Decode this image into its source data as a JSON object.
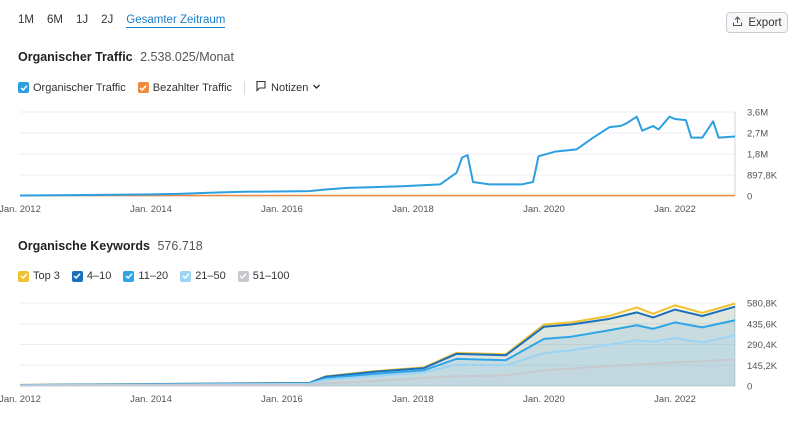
{
  "range": {
    "items": [
      "1M",
      "6M",
      "1J",
      "2J",
      "Gesamter Zeitraum"
    ],
    "active_index": 4
  },
  "export": {
    "label": "Export"
  },
  "traffic": {
    "title": "Organischer Traffic",
    "value": "2.538.025/Monat",
    "legend": [
      {
        "label": "Organischer Traffic",
        "color": "#2d9fe0",
        "checked": true
      },
      {
        "label": "Bezahlter Traffic",
        "color": "#ef8a3f",
        "checked": true
      }
    ],
    "notes_label": "Notizen"
  },
  "keywords": {
    "title": "Organische Keywords",
    "value": "576.718",
    "legend": [
      {
        "label": "Top 3",
        "color": "#f0c133"
      },
      {
        "label": "4–10",
        "color": "#1a70bb"
      },
      {
        "label": "11–20",
        "color": "#2ea6e6"
      },
      {
        "label": "21–50",
        "color": "#9dd3f3"
      },
      {
        "label": "51–100",
        "color": "#c7c9cf"
      }
    ]
  },
  "chart_data": [
    {
      "type": "line",
      "name": "organic-traffic",
      "ylim": [
        0,
        3600000
      ],
      "y_ticks": [
        "3,6M",
        "2,7M",
        "1,8M",
        "897,8K",
        "0"
      ],
      "x_ticks": [
        "Jan. 2012",
        "Jan. 2014",
        "Jan. 2016",
        "Jan. 2018",
        "Jan. 2020",
        "Jan. 2022"
      ],
      "series": [
        {
          "name": "Organischer Traffic",
          "color": "#2d9fe0",
          "points": [
            [
              "2012-01",
              20000
            ],
            [
              "2013-01",
              45000
            ],
            [
              "2014-01",
              70000
            ],
            [
              "2014-06",
              90000
            ],
            [
              "2015-01",
              150000
            ],
            [
              "2015-06",
              180000
            ],
            [
              "2016-06",
              210000
            ],
            [
              "2016-09",
              280000
            ],
            [
              "2017-01",
              350000
            ],
            [
              "2017-06",
              380000
            ],
            [
              "2017-11",
              420000
            ],
            [
              "2018-06",
              500000
            ],
            [
              "2018-09",
              1000000
            ],
            [
              "2018-10",
              1650000
            ],
            [
              "2018-11",
              1750000
            ],
            [
              "2018-12",
              600000
            ],
            [
              "2019-03",
              500000
            ],
            [
              "2019-09",
              500000
            ],
            [
              "2019-11",
              600000
            ],
            [
              "2019-12",
              1700000
            ],
            [
              "2020-03",
              1900000
            ],
            [
              "2020-07",
              2000000
            ],
            [
              "2020-10",
              2500000
            ],
            [
              "2021-01",
              2950000
            ],
            [
              "2021-03",
              3000000
            ],
            [
              "2021-04",
              3100000
            ],
            [
              "2021-06",
              3400000
            ],
            [
              "2021-07",
              2800000
            ],
            [
              "2021-09",
              3000000
            ],
            [
              "2021-10",
              2850000
            ],
            [
              "2021-12",
              3400000
            ],
            [
              "2022-01",
              3300000
            ],
            [
              "2022-03",
              3250000
            ],
            [
              "2022-04",
              2500000
            ],
            [
              "2022-06",
              2500000
            ],
            [
              "2022-08",
              3200000
            ],
            [
              "2022-09",
              2500000
            ],
            [
              "2022-12",
              2550000
            ]
          ]
        },
        {
          "name": "Bezahlter Traffic",
          "color": "#ef8a3f",
          "points": [
            [
              "2012-01",
              0
            ],
            [
              "2022-12",
              0
            ]
          ]
        }
      ]
    },
    {
      "type": "area",
      "name": "organic-keywords",
      "ylim": [
        0,
        580800
      ],
      "y_ticks": [
        "580,8K",
        "435,6K",
        "290,4K",
        "145,2K",
        "0"
      ],
      "x_ticks": [
        "Jan. 2012",
        "Jan. 2014",
        "Jan. 2016",
        "Jan. 2018",
        "Jan. 2020",
        "Jan. 2022"
      ],
      "series": [
        {
          "name": "51–100",
          "color": "#c7c9cf",
          "points": [
            [
              "2012-01",
              3000
            ],
            [
              "2016-06",
              9000
            ],
            [
              "2016-09",
              18000
            ],
            [
              "2017-06",
              35000
            ],
            [
              "2018-06",
              65000
            ],
            [
              "2019-06",
              75000
            ],
            [
              "2020-01",
              110000
            ],
            [
              "2021-01",
              140000
            ],
            [
              "2022-01",
              165000
            ],
            [
              "2022-12",
              185000
            ]
          ]
        },
        {
          "name": "21–50",
          "color": "#9dd3f3",
          "points": [
            [
              "2012-01",
              5000
            ],
            [
              "2016-06",
              15000
            ],
            [
              "2016-09",
              45000
            ],
            [
              "2017-06",
              70000
            ],
            [
              "2018-03",
              95000
            ],
            [
              "2018-09",
              150000
            ],
            [
              "2019-06",
              145000
            ],
            [
              "2020-01",
              230000
            ],
            [
              "2020-06",
              250000
            ],
            [
              "2021-01",
              290000
            ],
            [
              "2021-06",
              320000
            ],
            [
              "2021-09",
              310000
            ],
            [
              "2022-01",
              335000
            ],
            [
              "2022-06",
              305000
            ],
            [
              "2022-12",
              355000
            ]
          ]
        },
        {
          "name": "11–20",
          "color": "#2ea6e6",
          "points": [
            [
              "2012-01",
              6000
            ],
            [
              "2016-06",
              18000
            ],
            [
              "2016-09",
              55000
            ],
            [
              "2017-06",
              85000
            ],
            [
              "2018-03",
              110000
            ],
            [
              "2018-09",
              190000
            ],
            [
              "2019-06",
              180000
            ],
            [
              "2020-01",
              330000
            ],
            [
              "2020-06",
              345000
            ],
            [
              "2021-01",
              390000
            ],
            [
              "2021-06",
              425000
            ],
            [
              "2021-09",
              400000
            ],
            [
              "2022-01",
              445000
            ],
            [
              "2022-06",
              410000
            ],
            [
              "2022-12",
              460000
            ]
          ]
        },
        {
          "name": "4–10",
          "color": "#1a70bb",
          "points": [
            [
              "2012-01",
              7000
            ],
            [
              "2016-06",
              21000
            ],
            [
              "2016-09",
              65000
            ],
            [
              "2017-06",
              100000
            ],
            [
              "2018-03",
              125000
            ],
            [
              "2018-09",
              225000
            ],
            [
              "2019-06",
              215000
            ],
            [
              "2020-01",
              415000
            ],
            [
              "2020-06",
              430000
            ],
            [
              "2021-01",
              470000
            ],
            [
              "2021-06",
              515000
            ],
            [
              "2021-09",
              480000
            ],
            [
              "2022-01",
              535000
            ],
            [
              "2022-06",
              490000
            ],
            [
              "2022-12",
              555000
            ]
          ]
        },
        {
          "name": "Top 3",
          "color": "#f0c133",
          "points": [
            [
              "2012-01",
              8000
            ],
            [
              "2016-06",
              22000
            ],
            [
              "2016-09",
              68000
            ],
            [
              "2017-06",
              104000
            ],
            [
              "2018-03",
              130000
            ],
            [
              "2018-09",
              232000
            ],
            [
              "2019-06",
              222000
            ],
            [
              "2020-01",
              430000
            ],
            [
              "2020-06",
              445000
            ],
            [
              "2021-01",
              490000
            ],
            [
              "2021-06",
              550000
            ],
            [
              "2021-09",
              505000
            ],
            [
              "2022-01",
              565000
            ],
            [
              "2022-06",
              512000
            ],
            [
              "2022-12",
              577000
            ]
          ]
        }
      ]
    }
  ]
}
